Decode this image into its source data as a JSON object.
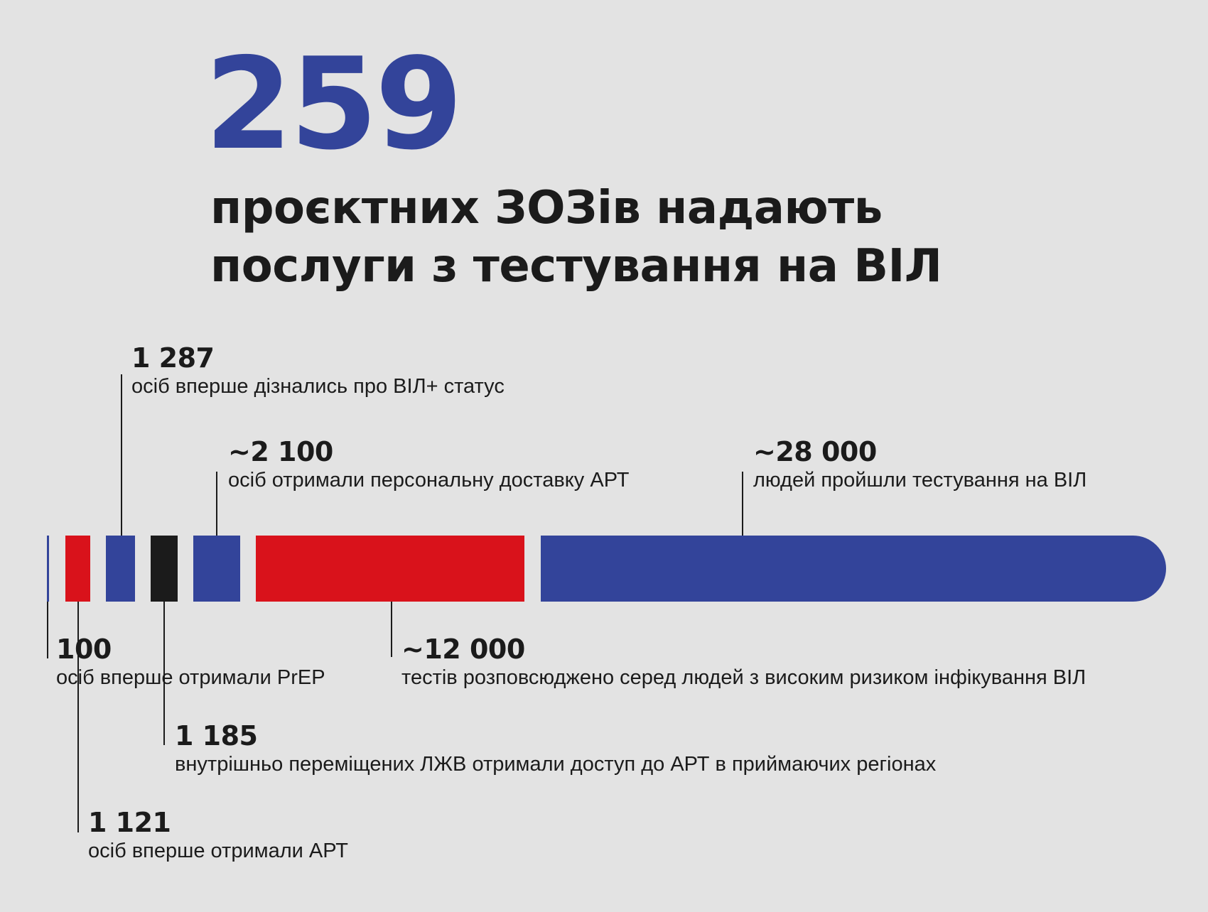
{
  "header": {
    "big_number": "259",
    "headline_line1": "проєктних ЗОЗів надають",
    "headline_line2": "послуги з тестування на ВІЛ"
  },
  "colors": {
    "blue": "#33449a",
    "red": "#d9121b",
    "black": "#1b1b1b",
    "background": "#e3e3e3"
  },
  "stats": [
    {
      "id": "first-prep",
      "number": "100",
      "text": "осіб вперше отримали PrEP",
      "color": "blue"
    },
    {
      "id": "first-art",
      "number": "1 121",
      "text": "осіб вперше отримали АРТ",
      "color": "red"
    },
    {
      "id": "learned-status",
      "number": "1 287",
      "text": "осіб вперше дізнались про ВІЛ+ статус",
      "color": "blue"
    },
    {
      "id": "idp-art",
      "number": "1 185",
      "text": "внутрішньо переміщених ЛЖВ отримали доступ до АРТ в приймаючих регіонах",
      "color": "black"
    },
    {
      "id": "art-delivery",
      "number": "~2 100",
      "text": "осіб отримали персональну доставку АРТ",
      "color": "blue"
    },
    {
      "id": "tests-distributed",
      "number": "~12 000",
      "text": "тестів розповсюджено серед людей з високим ризиком інфікування ВІЛ",
      "color": "red"
    },
    {
      "id": "tested",
      "number": "~28 000",
      "text": "людей пройшли тестування на ВІЛ",
      "color": "blue"
    }
  ]
}
